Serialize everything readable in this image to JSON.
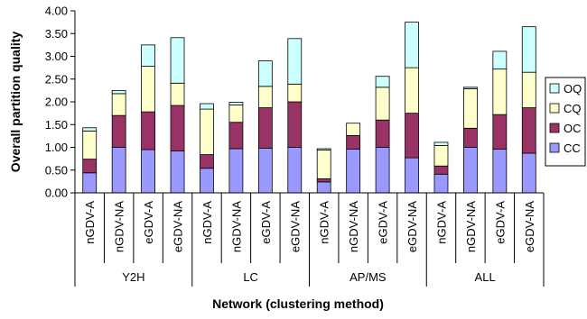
{
  "chart_data": {
    "type": "bar",
    "stacked": true,
    "title": "",
    "xlabel": "Network (clustering method)",
    "ylabel": "Overall partition quality",
    "ylim": [
      0,
      4
    ],
    "yticks": [
      "0.00",
      "0.50",
      "1.00",
      "1.50",
      "2.00",
      "2.50",
      "3.00",
      "3.50",
      "4.00"
    ],
    "grid": false,
    "legend_position": "right",
    "groups": [
      {
        "name": "Y2H",
        "methods": [
          "nGDV-A",
          "nGDV-NA",
          "eGDV-A",
          "eGDV-NA"
        ]
      },
      {
        "name": "LC",
        "methods": [
          "nGDV-A",
          "nGDV-NA",
          "eGDV-A",
          "eGDV-NA"
        ]
      },
      {
        "name": "AP/MS",
        "methods": [
          "nGDV-A",
          "nGDV-NA",
          "eGDV-A",
          "eGDV-NA"
        ]
      },
      {
        "name": "ALL",
        "methods": [
          "nGDV-A",
          "nGDV-NA",
          "eGDV-A",
          "eGDV-NA"
        ]
      }
    ],
    "series": [
      {
        "name": "CC",
        "color": "#9999ff",
        "values": [
          0.44,
          1.0,
          0.95,
          0.92,
          0.54,
          0.97,
          0.98,
          1.0,
          0.24,
          0.96,
          1.0,
          0.77,
          0.41,
          1.0,
          0.96,
          0.87
        ]
      },
      {
        "name": "OC",
        "color": "#993366",
        "values": [
          0.3,
          0.7,
          0.83,
          1.0,
          0.3,
          0.58,
          0.89,
          1.0,
          0.07,
          0.3,
          0.6,
          0.98,
          0.18,
          0.42,
          0.76,
          1.0
        ]
      },
      {
        "name": "CQ",
        "color": "#ffffcc",
        "values": [
          0.62,
          0.48,
          1.0,
          0.49,
          1.0,
          0.38,
          0.47,
          0.39,
          0.63,
          0.27,
          0.72,
          1.0,
          0.45,
          0.87,
          1.0,
          0.78
        ]
      },
      {
        "name": "OQ",
        "color": "#ccffff",
        "values": [
          0.07,
          0.07,
          0.47,
          1.0,
          0.12,
          0.06,
          0.56,
          1.0,
          0.03,
          0.0,
          0.24,
          1.0,
          0.07,
          0.03,
          0.39,
          1.0
        ]
      }
    ],
    "legend_order": [
      "OQ",
      "CQ",
      "OC",
      "CC"
    ]
  }
}
